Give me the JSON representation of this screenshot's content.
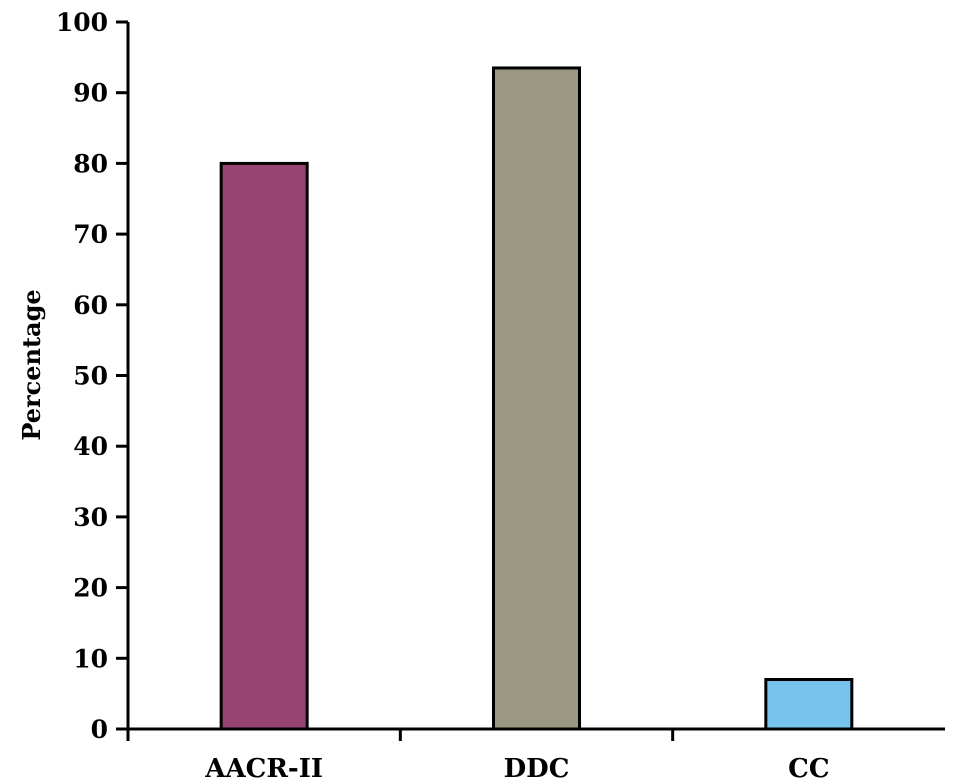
{
  "chart_data": {
    "type": "bar",
    "categories": [
      "AACR-II",
      "DDC",
      "CC"
    ],
    "values": [
      80,
      93.5,
      7
    ],
    "ylabel": "Percentage",
    "xlabel": "",
    "ylim": [
      0,
      100
    ],
    "yticks": [
      0,
      10,
      20,
      30,
      40,
      50,
      60,
      70,
      80,
      90,
      100
    ],
    "grid": false,
    "legend": "none",
    "colors": [
      "#974475",
      "#9a9882",
      "#78c3ee"
    ]
  }
}
